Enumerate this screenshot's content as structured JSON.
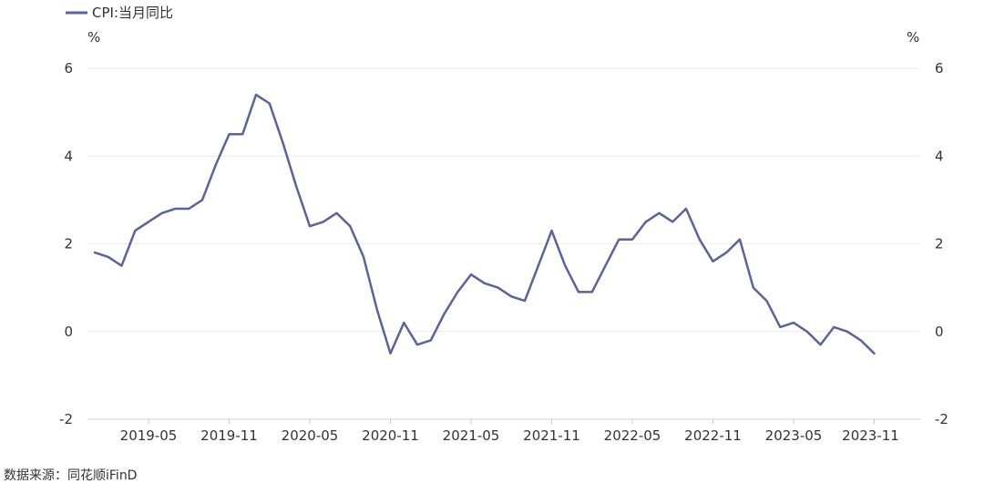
{
  "legend": {
    "label": "CPI:当月同比",
    "color": "#5B6399"
  },
  "footer": {
    "source": "数据来源：同花顺iFinD"
  },
  "chart_data": {
    "type": "line",
    "title": "",
    "left_unit": "%",
    "right_unit": "%",
    "ylim": [
      -2,
      6
    ],
    "yticks": [
      -2,
      0,
      2,
      4,
      6
    ],
    "grid": true,
    "legend_position": "top-left",
    "x_tick_labels": [
      "2019-05",
      "2019-11",
      "2020-05",
      "2020-11",
      "2021-05",
      "2021-11",
      "2022-05",
      "2022-11",
      "2023-05",
      "2023-11"
    ],
    "x_start": "2019-01",
    "series": [
      {
        "name": "CPI:当月同比",
        "color": "#5B6399",
        "values": [
          1.8,
          1.7,
          1.5,
          2.3,
          2.5,
          2.7,
          2.8,
          2.8,
          3.0,
          3.8,
          4.5,
          4.5,
          5.4,
          5.2,
          4.3,
          3.3,
          2.4,
          2.5,
          2.7,
          2.4,
          1.7,
          0.5,
          -0.5,
          0.2,
          -0.3,
          -0.2,
          0.4,
          0.9,
          1.3,
          1.1,
          1.0,
          0.8,
          0.7,
          1.5,
          2.3,
          1.5,
          0.9,
          0.9,
          1.5,
          2.1,
          2.1,
          2.5,
          2.7,
          2.5,
          2.8,
          2.1,
          1.6,
          1.8,
          2.1,
          1.0,
          0.7,
          0.1,
          0.2,
          0.0,
          -0.3,
          0.1,
          0.0,
          -0.2,
          -0.5
        ]
      }
    ]
  }
}
